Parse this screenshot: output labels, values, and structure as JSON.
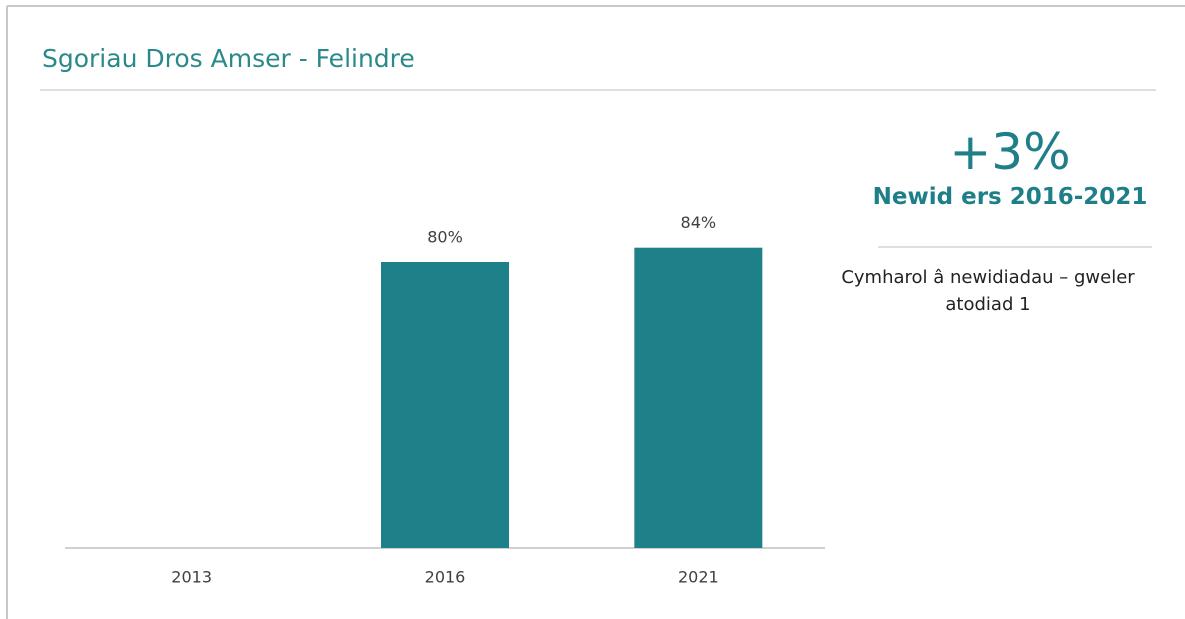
{
  "chart_data": {
    "type": "bar",
    "title": "Sgoriau Dros Amser - Felindre",
    "categories": [
      "2013",
      "2016",
      "2021"
    ],
    "values": [
      null,
      80,
      84
    ],
    "value_labels": [
      null,
      "80%",
      "84%"
    ],
    "color": "#1e8189",
    "ylim": [
      0,
      100
    ]
  },
  "summary": {
    "headline": "+3%",
    "subtitle": "Newid ers 2016-2021",
    "note": "Cymharol â newidiadau – gweler atodiad 1"
  }
}
